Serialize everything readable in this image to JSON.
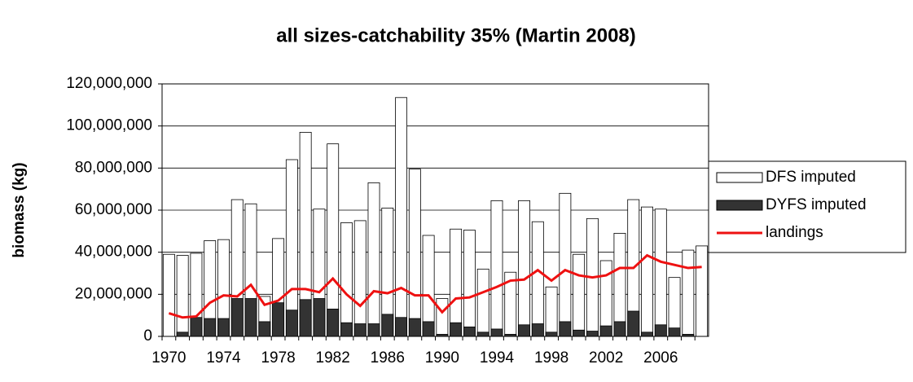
{
  "chart_data": {
    "type": "bar",
    "title": "all sizes-catchability 35% (Martin 2008)",
    "y_label": "biomass (kg)",
    "categories": [
      "1970",
      null,
      null,
      null,
      "1974",
      null,
      null,
      null,
      "1978",
      null,
      null,
      null,
      "1982",
      null,
      null,
      null,
      "1986",
      null,
      null,
      null,
      "1990",
      null,
      null,
      null,
      "1994",
      null,
      null,
      null,
      "1998",
      null,
      null,
      null,
      "2002",
      null,
      null,
      null,
      "2006",
      null,
      null,
      null
    ],
    "series": [
      {
        "name": "DFS imputed",
        "type": "bar",
        "color": "#ffffff",
        "values": [
          39000000,
          38500000,
          39500000,
          45500000,
          46000000,
          65000000,
          63000000,
          19000000,
          46500000,
          84000000,
          97000000,
          60500000,
          91500000,
          54000000,
          55000000,
          73000000,
          61000000,
          113500000,
          79500000,
          48000000,
          18000000,
          51000000,
          50500000,
          32000000,
          64500000,
          30500000,
          64500000,
          54500000,
          23500000,
          68000000,
          39000000,
          56000000,
          36000000,
          49000000,
          65000000,
          61500000,
          60500000,
          28000000,
          41000000,
          43000000
        ]
      },
      {
        "name": "DYFS imputed",
        "type": "bar",
        "color": "#333333",
        "values": [
          0,
          2000000,
          9000000,
          8500000,
          8500000,
          18000000,
          18000000,
          7000000,
          16000000,
          12500000,
          17500000,
          18000000,
          13000000,
          6500000,
          6000000,
          6000000,
          10500000,
          9000000,
          8500000,
          7000000,
          1000000,
          6500000,
          4500000,
          2000000,
          3500000,
          1000000,
          5500000,
          6000000,
          2000000,
          7000000,
          3000000,
          2500000,
          5000000,
          7000000,
          12000000,
          2000000,
          5500000,
          4000000,
          1000000,
          0
        ]
      },
      {
        "name": "landings",
        "type": "line",
        "color": "#ee1111",
        "values": [
          11000000,
          9000000,
          9500000,
          16000000,
          19500000,
          19000000,
          24500000,
          15000000,
          17000000,
          22500000,
          22500000,
          21000000,
          27500000,
          20000000,
          14500000,
          21500000,
          20500000,
          23000000,
          19500000,
          19500000,
          11500000,
          18000000,
          18500000,
          21000000,
          23500000,
          26500000,
          27000000,
          31500000,
          26500000,
          31500000,
          29000000,
          28000000,
          29000000,
          32500000,
          32500000,
          38500000,
          35500000,
          34000000,
          32500000,
          33000000
        ]
      }
    ],
    "ylim": [
      0,
      120000000
    ],
    "yticks": [
      0,
      {
        "value": 20000000,
        "label": "20,000,000"
      },
      {
        "value": 40000000,
        "label": "40,000,000"
      },
      {
        "value": 60000000,
        "label": "60,000,000"
      },
      {
        "value": 80000000,
        "label": "80,000,000"
      },
      {
        "value": 100000000,
        "label": "100,000,000"
      },
      {
        "value": 120000000,
        "label": "120,000,000"
      }
    ],
    "grid": true,
    "legend": "right"
  }
}
